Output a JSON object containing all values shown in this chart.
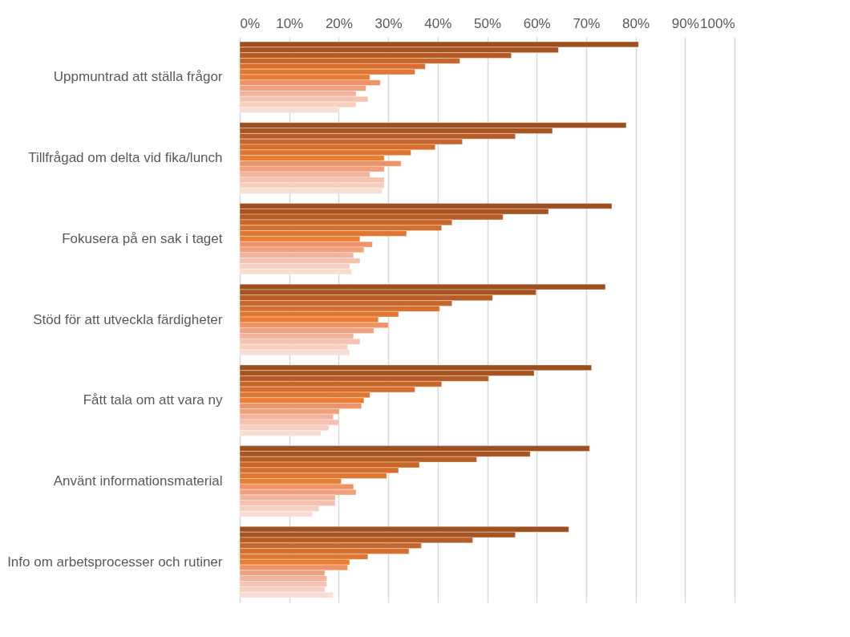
{
  "chart_data": {
    "type": "bar",
    "orientation": "horizontal",
    "grid": "x",
    "categories": [
      "Uppmuntrad att ställa frågor",
      "Tillfrågad om delta vid fika/lunch",
      "Fokusera på en sak i taget",
      "Stöd för att utveckla färdigheter",
      "Fått tala om att vara ny",
      "Använt informationsmaterial",
      "Info om arbetsprocesser och rutiner"
    ],
    "xlim": [
      0,
      100
    ],
    "xticks": [
      {
        "value": 0,
        "label": "0%"
      },
      {
        "value": 10,
        "label": "10%"
      },
      {
        "value": 20,
        "label": "20%"
      },
      {
        "value": 30,
        "label": "30%"
      },
      {
        "value": 40,
        "label": "40%"
      },
      {
        "value": 50,
        "label": "50%"
      },
      {
        "value": 60,
        "label": "60%"
      },
      {
        "value": 70,
        "label": "70%"
      },
      {
        "value": 80,
        "label": "80%"
      },
      {
        "value": 90,
        "label": "90%"
      },
      {
        "value": 100,
        "label": "100%"
      }
    ],
    "series": [
      {
        "color": "#9e4f1f",
        "values": [
          80.6,
          78.1,
          75.2,
          73.9,
          71.1,
          70.7,
          66.5
        ]
      },
      {
        "color": "#a85420",
        "values": [
          64.4,
          63.2,
          62.4,
          59.9,
          59.5,
          58.7,
          55.7
        ]
      },
      {
        "color": "#b85b24",
        "values": [
          54.9,
          55.7,
          53.2,
          51.1,
          50.3,
          47.9,
          47.1
        ]
      },
      {
        "color": "#c8662a",
        "values": [
          44.5,
          45.0,
          42.9,
          42.9,
          40.8,
          36.3,
          36.7
        ]
      },
      {
        "color": "#d66e2e",
        "values": [
          37.5,
          39.5,
          40.8,
          40.4,
          35.4,
          32.1,
          34.2
        ]
      },
      {
        "color": "#e17630",
        "values": [
          35.4,
          34.6,
          33.7,
          32.1,
          26.3,
          29.7,
          25.9
        ]
      },
      {
        "color": "#ec7c32",
        "values": [
          26.3,
          29.2,
          24.3,
          28.0,
          25.1,
          20.5,
          22.2
        ]
      },
      {
        "color": "#ef9367",
        "values": [
          28.4,
          32.6,
          26.8,
          30.0,
          24.6,
          23.0,
          21.8
        ]
      },
      {
        "color": "#f0a07c",
        "values": [
          25.5,
          29.2,
          25.1,
          27.1,
          20.1,
          23.5,
          17.2
        ]
      },
      {
        "color": "#f2b29b",
        "values": [
          23.5,
          26.3,
          23.0,
          23.0,
          18.9,
          19.3,
          17.6
        ]
      },
      {
        "color": "#f4c2ae",
        "values": [
          25.9,
          29.2,
          24.3,
          24.3,
          20.1,
          19.3,
          17.6
        ]
      },
      {
        "color": "#f6cfc0",
        "values": [
          23.5,
          29.2,
          22.2,
          21.8,
          18.0,
          16.0,
          17.2
        ]
      },
      {
        "color": "#f8ddd3",
        "values": [
          20.0,
          28.8,
          22.6,
          22.2,
          16.4,
          14.7,
          18.9
        ]
      }
    ]
  }
}
